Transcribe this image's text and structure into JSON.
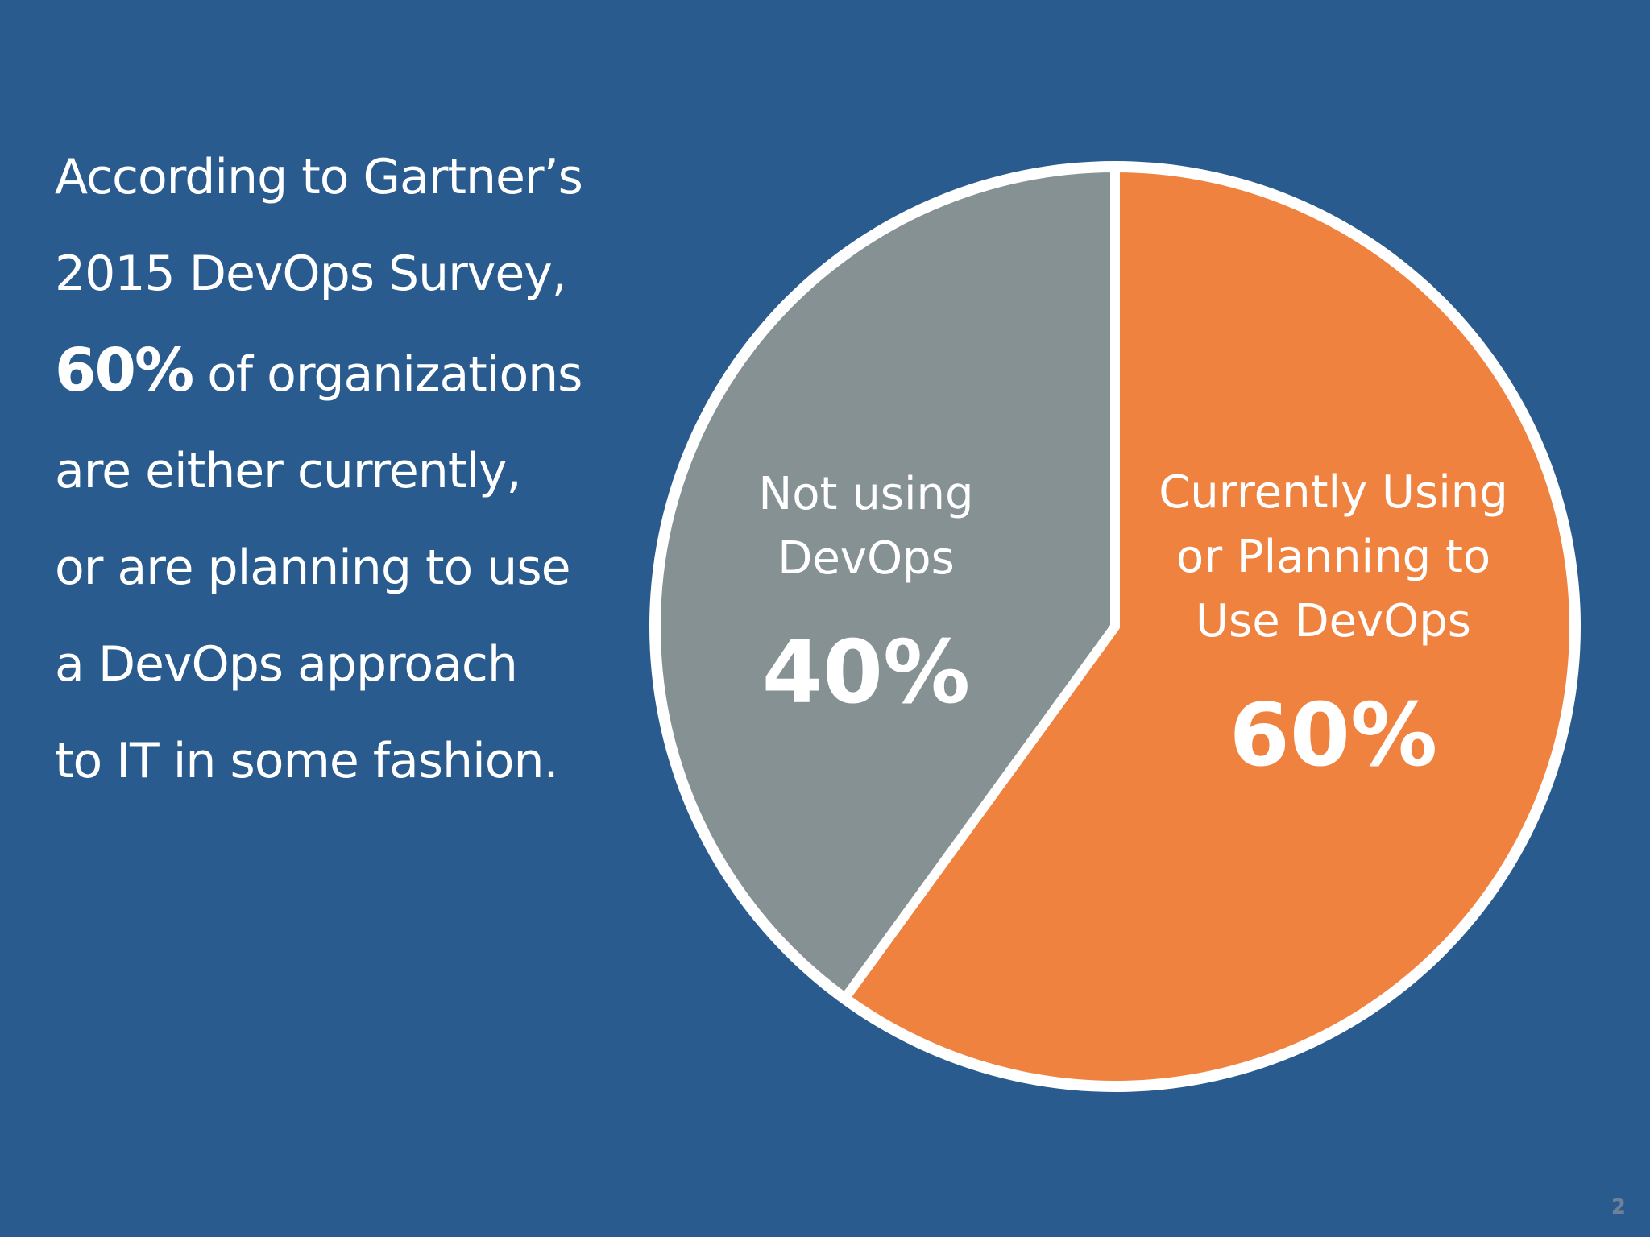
{
  "colors": {
    "background": "#295b8f",
    "slice_not_using": "#869194",
    "slice_using": "#f08240",
    "outline": "#ffffff",
    "page_number": "#6f8198"
  },
  "intro": {
    "line1": "According to Gartner’s",
    "line2": "2015 DevOps Survey,",
    "line3_highlight": "60%",
    "line3_rest": "of organizations",
    "line4": "are either currently,",
    "line5": "or are planning to use",
    "line6": "a DevOps approach",
    "line7": "to IT in some fashion."
  },
  "chart_data": {
    "type": "pie",
    "title": "",
    "slices": [
      {
        "label_lines": [
          "Not using",
          "DevOps"
        ],
        "value": 40,
        "display": "40%",
        "color": "#869194"
      },
      {
        "label_lines": [
          "Currently Using",
          "or Planning to",
          "Use DevOps"
        ],
        "value": 60,
        "display": "60%",
        "color": "#f08240"
      }
    ],
    "start": "12 o'clock",
    "direction": "clockwise",
    "legend": "none",
    "labels": "inside slices"
  },
  "page_number": "2"
}
